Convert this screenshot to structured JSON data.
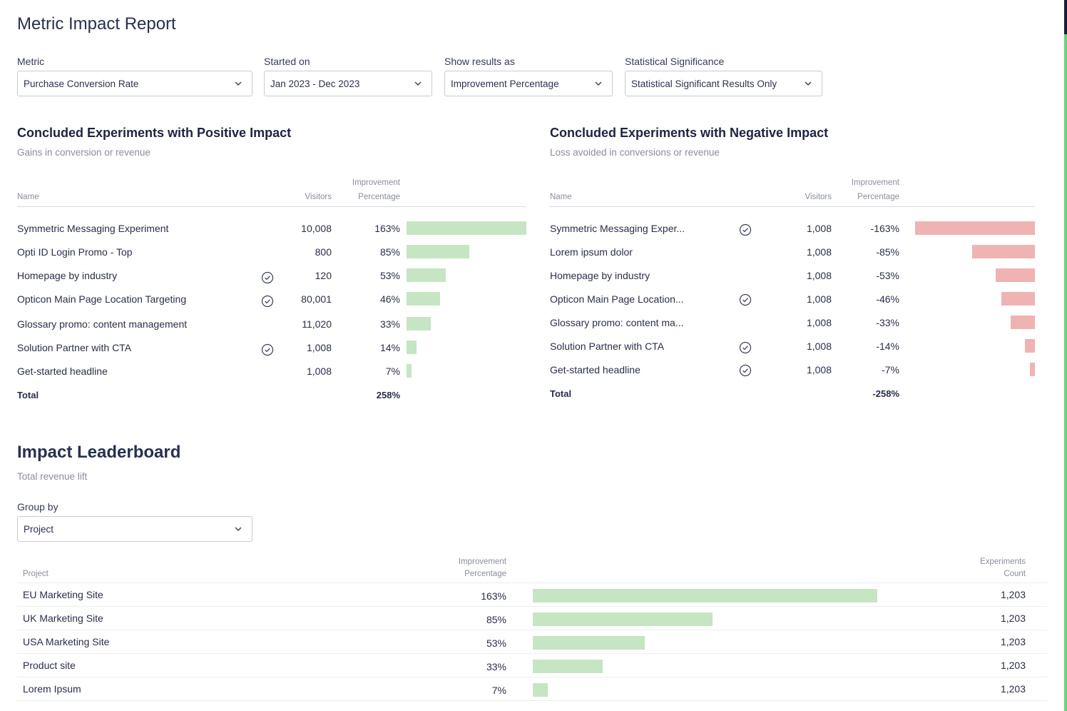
{
  "title": "Metric Impact Report",
  "filters": [
    {
      "label": "Metric",
      "value": "Purchase Conversion Rate"
    },
    {
      "label": "Started on",
      "value": "Jan 2023 - Dec 2023"
    },
    {
      "label": "Show results as",
      "value": "Improvement Percentage"
    },
    {
      "label": "Statistical Significance",
      "value": "Statistical Significant Results Only"
    }
  ],
  "positive": {
    "title": "Concluded Experiments with Positive Impact",
    "subtitle": "Gains in conversion or revenue",
    "col_name": "Name",
    "col_visitors": "Visitors",
    "col_improvement_1": "Improvement",
    "col_improvement_2": "Percentage",
    "rows": [
      {
        "name": "Symmetric Messaging Experiment",
        "visitors": "10,008",
        "pct": "163%",
        "value": 163,
        "sig": false
      },
      {
        "name": "Opti ID Login Promo - Top",
        "visitors": "800",
        "pct": "85%",
        "value": 85,
        "sig": false
      },
      {
        "name": "Homepage by industry",
        "visitors": "120",
        "pct": "53%",
        "value": 53,
        "sig": true
      },
      {
        "name": "Opticon Main Page Location Targeting",
        "visitors": "80,001",
        "pct": "46%",
        "value": 46,
        "sig": true
      },
      {
        "name": "Glossary promo: content management",
        "visitors": "11,020",
        "pct": "33%",
        "value": 33,
        "sig": false
      },
      {
        "name": "Solution Partner with CTA",
        "visitors": "1,008",
        "pct": "14%",
        "value": 14,
        "sig": true
      },
      {
        "name": "Get-started headline",
        "visitors": "1,008",
        "pct": "7%",
        "value": 7,
        "sig": false
      }
    ],
    "total_label": "Total",
    "total_value": "258%"
  },
  "negative": {
    "title": "Concluded Experiments with Negative Impact",
    "subtitle": "Loss avoided in conversions or revenue",
    "col_name": "Name",
    "col_visitors": "Visitors",
    "col_improvement_1": "Improvement",
    "col_improvement_2": "Percentage",
    "rows": [
      {
        "name": "Symmetric Messaging Exper...",
        "visitors": "1,008",
        "pct": "-163%",
        "value": 163,
        "sig": true
      },
      {
        "name": "Lorem ipsum dolor",
        "visitors": "1,008",
        "pct": "-85%",
        "value": 85,
        "sig": false
      },
      {
        "name": "Homepage by industry",
        "visitors": "1,008",
        "pct": "-53%",
        "value": 53,
        "sig": false
      },
      {
        "name": "Opticon Main Page Location...",
        "visitors": "1,008",
        "pct": "-46%",
        "value": 46,
        "sig": true
      },
      {
        "name": "Glossary promo: content ma...",
        "visitors": "1,008",
        "pct": "-33%",
        "value": 33,
        "sig": false
      },
      {
        "name": "Solution Partner with CTA",
        "visitors": "1,008",
        "pct": "-14%",
        "value": 14,
        "sig": true
      },
      {
        "name": "Get-started headline",
        "visitors": "1,008",
        "pct": "-7%",
        "value": 7,
        "sig": true
      }
    ],
    "total_label": "Total",
    "total_value": "-258%"
  },
  "leaderboard": {
    "title": "Impact Leaderboard",
    "subtitle": "Total revenue lift",
    "group_by_label": "Group by",
    "group_by_value": "Project",
    "col_project": "Project",
    "col_improvement_1": "Improvement",
    "col_improvement_2": "Percentage",
    "col_count_1": "Experiments",
    "col_count_2": "Count",
    "rows": [
      {
        "project": "EU Marketing Site",
        "pct": "163%",
        "value": 163,
        "count": "1,203"
      },
      {
        "project": "UK Marketing Site",
        "pct": "85%",
        "value": 85,
        "count": "1,203"
      },
      {
        "project": "USA Marketing Site",
        "pct": "53%",
        "value": 53,
        "count": "1,203"
      },
      {
        "project": "Product site",
        "pct": "33%",
        "value": 33,
        "count": "1,203"
      },
      {
        "project": "Lorem Ipsum",
        "pct": "7%",
        "value": 7,
        "count": "1,203"
      }
    ]
  },
  "icons": {
    "dropdown": "chevron-down-icon",
    "significant": "check-circle-icon"
  },
  "colors": {
    "positive_bar": "#c6e5c3",
    "negative_bar": "#efb3b3",
    "text": "#1f2340",
    "muted": "#8a8d9c"
  }
}
